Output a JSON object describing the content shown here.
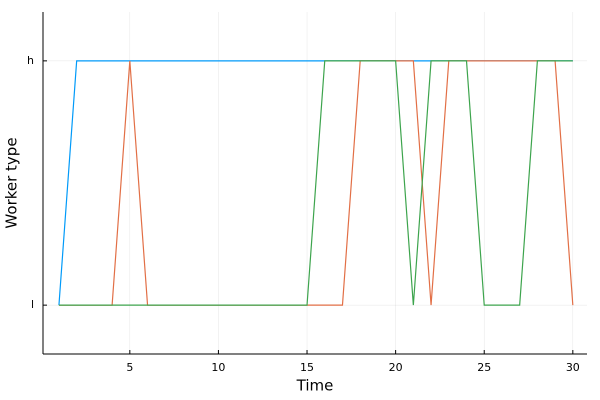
{
  "chart_data": {
    "type": "line",
    "x_label": "Time",
    "y_label": "Worker type",
    "x": [
      1,
      2,
      3,
      4,
      5,
      6,
      7,
      8,
      9,
      10,
      11,
      12,
      13,
      14,
      15,
      16,
      17,
      18,
      19,
      20,
      21,
      22,
      23,
      24,
      25,
      26,
      27,
      28,
      29,
      30
    ],
    "series": [
      {
        "color": "#009af9",
        "values": [
          0,
          1,
          1,
          1,
          1,
          1,
          1,
          1,
          1,
          1,
          1,
          1,
          1,
          1,
          1,
          1,
          1,
          1,
          1,
          1,
          1,
          1,
          1,
          1,
          1,
          1,
          1,
          1,
          1,
          1
        ]
      },
      {
        "color": "#e26f46",
        "values": [
          0,
          0,
          0,
          0,
          1,
          0,
          0,
          0,
          0,
          0,
          0,
          0,
          0,
          0,
          0,
          0,
          0,
          1,
          1,
          1,
          1,
          0,
          1,
          1,
          1,
          1,
          1,
          1,
          1,
          0
        ]
      },
      {
        "color": "#3da44d",
        "values": [
          0,
          0,
          0,
          0,
          0,
          0,
          0,
          0,
          0,
          0,
          0,
          0,
          0,
          0,
          0,
          1,
          1,
          1,
          1,
          1,
          0,
          1,
          1,
          1,
          0,
          0,
          0,
          1,
          1,
          1
        ]
      }
    ],
    "xlim": [
      0.1,
      30.8
    ],
    "xticks": [
      5,
      10,
      15,
      20,
      25,
      30
    ],
    "ylim": [
      -0.2,
      1.2
    ],
    "yticks": [
      {
        "value": 0,
        "label": "l"
      },
      {
        "value": 1,
        "label": "h"
      }
    ],
    "grid": true
  }
}
